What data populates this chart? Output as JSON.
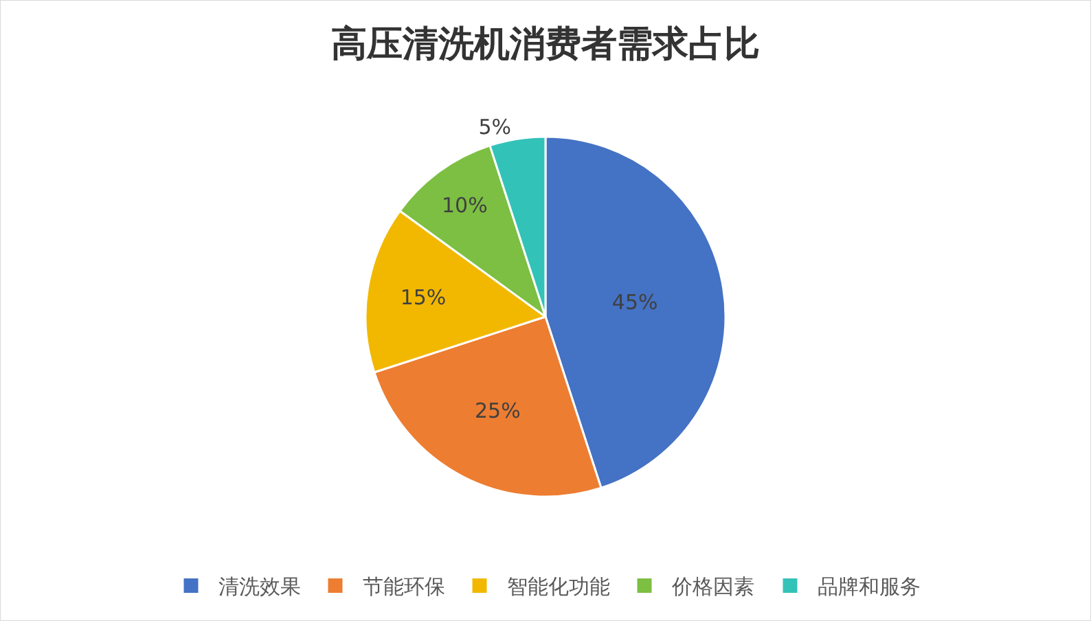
{
  "chart_data": {
    "type": "pie",
    "title": "高压清洗机消费者需求占比",
    "categories": [
      "清洗效果",
      "节能环保",
      "智能化功能",
      "价格因素",
      "品牌和服务"
    ],
    "values": [
      45,
      25,
      15,
      10,
      5
    ],
    "value_labels": [
      "45%",
      "25%",
      "15%",
      "10%",
      "5%"
    ],
    "colors": [
      "#4472c4",
      "#ed7d31",
      "#f2b800",
      "#7cbf42",
      "#33c2b8"
    ],
    "legend": "bottom"
  }
}
